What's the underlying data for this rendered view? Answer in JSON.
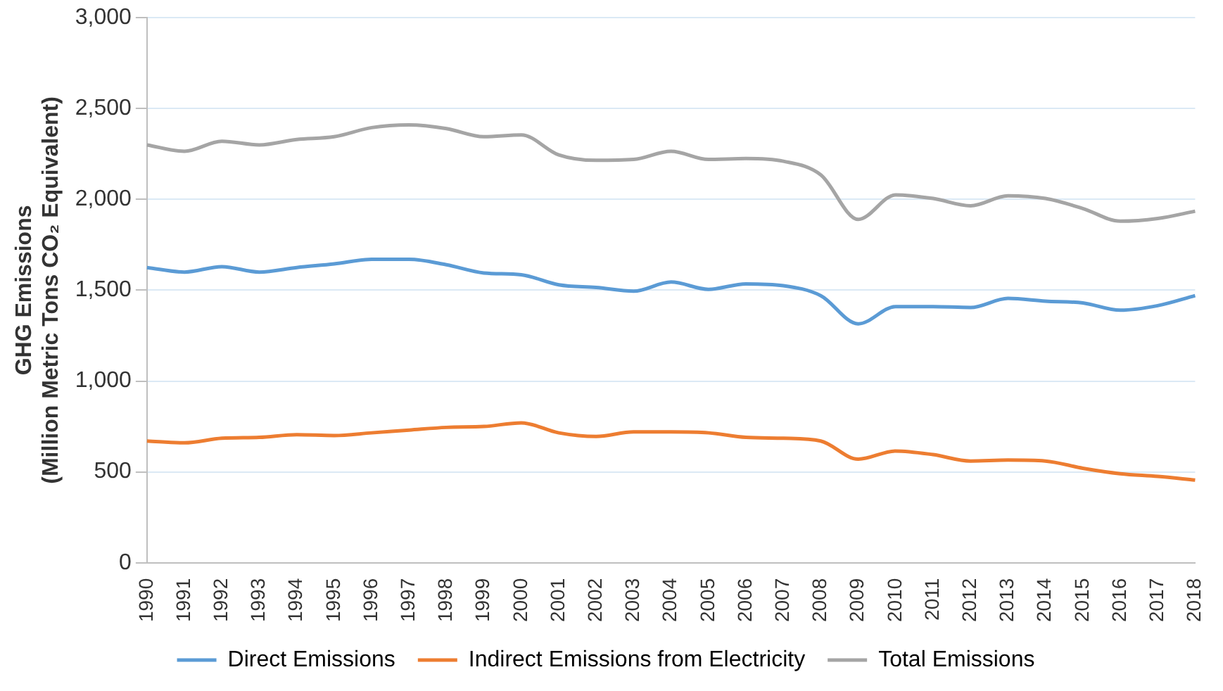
{
  "chart_data": {
    "type": "line",
    "ylabel": "GHG Emissions\n(Million Metric Tons CO₂ Equivalent)",
    "categories": [
      "1990",
      "1991",
      "1992",
      "1993",
      "1994",
      "1995",
      "1996",
      "1997",
      "1998",
      "1999",
      "2000",
      "2001",
      "2002",
      "2003",
      "2004",
      "2005",
      "2006",
      "2007",
      "2008",
      "2009",
      "2010",
      "2011",
      "2012",
      "2013",
      "2014",
      "2015",
      "2016",
      "2017",
      "2018"
    ],
    "series": [
      {
        "name": "Direct Emissions",
        "color": "#5b9bd5",
        "values": [
          1625,
          1600,
          1630,
          1600,
          1625,
          1645,
          1670,
          1670,
          1640,
          1595,
          1585,
          1530,
          1515,
          1495,
          1545,
          1505,
          1535,
          1525,
          1470,
          1315,
          1410,
          1410,
          1405,
          1455,
          1440,
          1430,
          1390,
          1415,
          1470
        ]
      },
      {
        "name": "Indirect Emissions from Electricity",
        "color": "#ed7d31",
        "values": [
          670,
          660,
          685,
          690,
          705,
          700,
          715,
          730,
          745,
          750,
          770,
          715,
          695,
          720,
          720,
          715,
          690,
          685,
          670,
          570,
          615,
          595,
          560,
          565,
          560,
          520,
          490,
          475,
          455
        ]
      },
      {
        "name": "Total Emissions",
        "color": "#a5a5a5",
        "values": [
          2300,
          2265,
          2320,
          2300,
          2330,
          2345,
          2395,
          2410,
          2390,
          2345,
          2355,
          2245,
          2215,
          2220,
          2265,
          2220,
          2225,
          2210,
          2135,
          1890,
          2025,
          2005,
          1965,
          2020,
          2005,
          1950,
          1880,
          1895,
          1935
        ]
      }
    ],
    "ylim": [
      0,
      3000
    ],
    "yticks": [
      {
        "value": 0,
        "label": "0"
      },
      {
        "value": 500,
        "label": "500"
      },
      {
        "value": 1000,
        "label": "1,000"
      },
      {
        "value": 1500,
        "label": "1,500"
      },
      {
        "value": 2000,
        "label": "2,000"
      },
      {
        "value": 2500,
        "label": "2,500"
      },
      {
        "value": 3000,
        "label": "3,000"
      }
    ],
    "grid": "y",
    "legend": "bottom",
    "marker": "none",
    "line_style": "solid"
  }
}
